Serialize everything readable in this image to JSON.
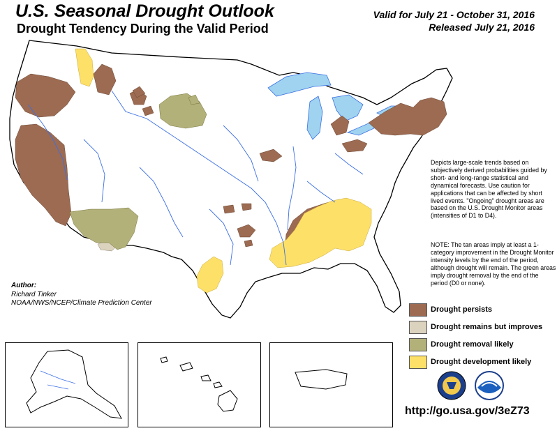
{
  "header": {
    "title": "U.S. Seasonal Drought Outlook",
    "subtitle": "Drought Tendency During the Valid Period",
    "valid_line": "Valid for July 21 - October 31, 2016",
    "released_line": "Released July 21, 2016"
  },
  "description": "Depicts large-scale trends based on subjectively derived probabilities guided by short- and long-range statistical and dynamical forecasts. Use caution for applications that can be affected by short lived events. \"Ongoing\" drought areas are based on the U.S. Drought Monitor areas (intensities of D1 to D4).",
  "note": "NOTE: The tan areas imply at least a 1-category improvement in the Drought Monitor intensity levels by the end of the period, although drought will remain. The green areas imply drought removal by the end of the period (D0 or none).",
  "author": {
    "label": "Author:",
    "name": "Richard Tinker",
    "org": "NOAA/NWS/NCEP/Climate Prediction Center"
  },
  "legend": [
    {
      "label": "Drought persists",
      "color": "#9c6b52"
    },
    {
      "label": "Drought remains but improves",
      "color": "#dcd3bf"
    },
    {
      "label": "Drought removal likely",
      "color": "#b3b17a"
    },
    {
      "label": "Drought development likely",
      "color": "#fde068"
    }
  ],
  "url": "http://go.usa.gov/3eZ73",
  "colors": {
    "persists": "#9c6b52",
    "improves": "#dcd3bf",
    "removal": "#b3b17a",
    "development": "#fde068",
    "water": "#9fd3ef",
    "rivers": "#3b6fe6"
  },
  "icons": [
    "doc-seal-icon",
    "noaa-logo-icon"
  ]
}
